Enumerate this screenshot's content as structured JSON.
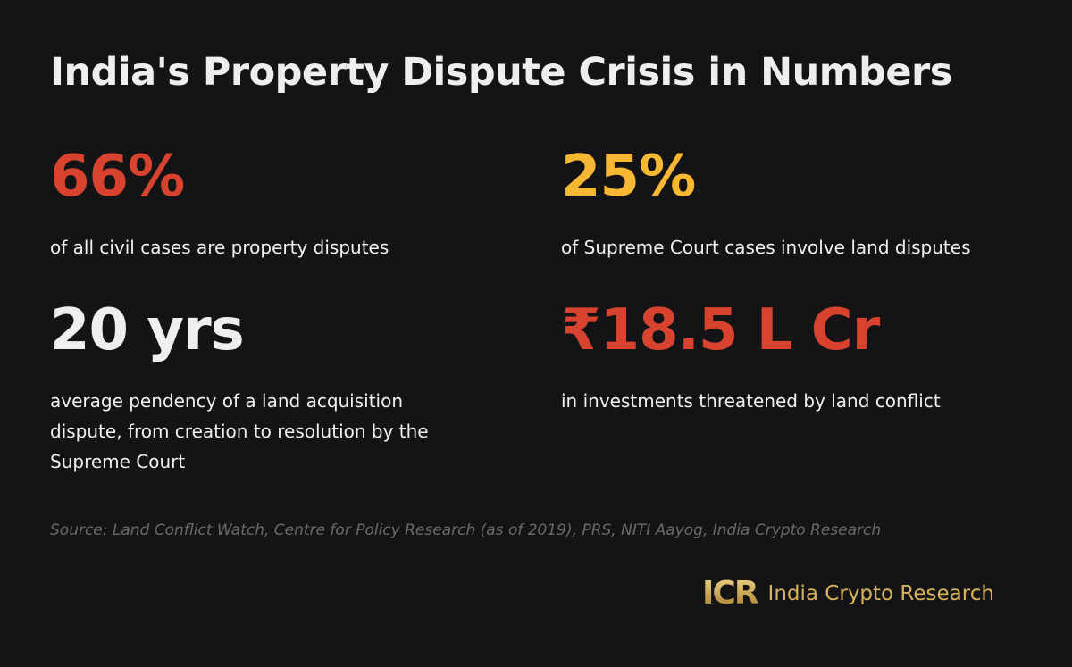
{
  "header": {
    "title": "India's Property Dispute Crisis in Numbers"
  },
  "stats": [
    {
      "value": "66%",
      "description": "of all civil cases are property disputes",
      "color": "#d8432f"
    },
    {
      "value": "25%",
      "description": "of Supreme Court cases involve land disputes",
      "color": "#f6b733"
    },
    {
      "value": "20 yrs",
      "description": "average pendency of a land acquisition dispute, from creation to resolution by the Supreme Court",
      "color": "#eeeeee"
    },
    {
      "value": "₹18.5 L Cr",
      "description": "in investments threatened by land conflict",
      "color": "#d8432f"
    }
  ],
  "footer": {
    "source": "Source: Land Conflict Watch, Centre for Policy Research (as of 2019), PRS, NITI Aayog, India Crypto Research",
    "logo_mark": "ICR",
    "logo_text": "India Crypto Research"
  }
}
